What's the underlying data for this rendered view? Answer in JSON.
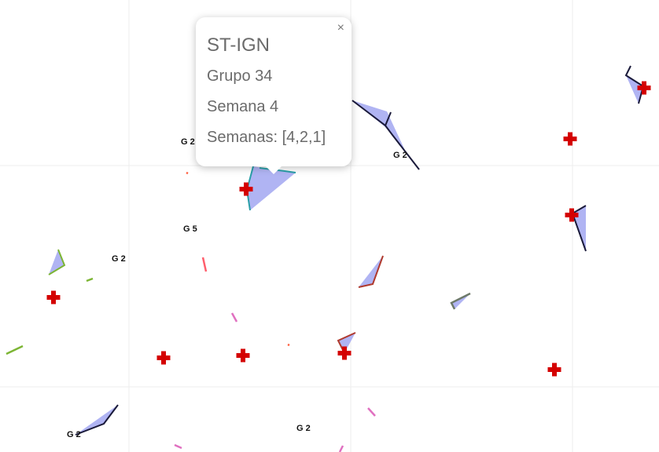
{
  "map": {
    "marker_icon": "red-cross-marker-icon",
    "area_fill_color": "#b0b4f3",
    "marker_color": "#d40000",
    "grid_color": "#eeeeee",
    "labels": [
      "G 2",
      "G 2",
      "G 5",
      "G 2",
      "G 2",
      "G 2"
    ]
  },
  "popup": {
    "close_label": "×",
    "title": "ST-IGN",
    "group": "Grupo 34",
    "week": "Semana 4",
    "weeks": "Semanas: [4,2,1]"
  }
}
